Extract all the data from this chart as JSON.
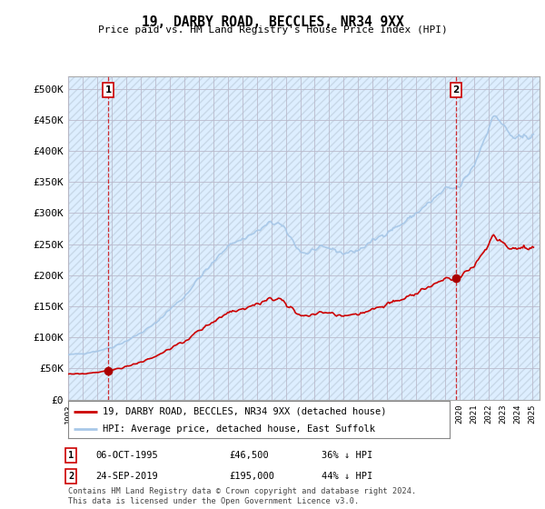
{
  "title": "19, DARBY ROAD, BECCLES, NR34 9XX",
  "subtitle": "Price paid vs. HM Land Registry's House Price Index (HPI)",
  "ylabel_ticks": [
    "£0",
    "£50K",
    "£100K",
    "£150K",
    "£200K",
    "£250K",
    "£300K",
    "£350K",
    "£400K",
    "£450K",
    "£500K"
  ],
  "ytick_values": [
    0,
    50000,
    100000,
    150000,
    200000,
    250000,
    300000,
    350000,
    400000,
    450000,
    500000
  ],
  "ylim": [
    0,
    520000
  ],
  "xlim_start": 1993.0,
  "xlim_end": 2025.5,
  "xtick_years": [
    1993,
    1994,
    1995,
    1996,
    1997,
    1998,
    1999,
    2000,
    2001,
    2002,
    2003,
    2004,
    2005,
    2006,
    2007,
    2008,
    2009,
    2010,
    2011,
    2012,
    2013,
    2014,
    2015,
    2016,
    2017,
    2018,
    2019,
    2020,
    2021,
    2022,
    2023,
    2024,
    2025
  ],
  "hpi_color": "#a8c8e8",
  "price_color": "#cc0000",
  "marker_color": "#aa0000",
  "dashed_line_color": "#cc0000",
  "background_color": "#ffffff",
  "plot_bg_color": "#ddeeff",
  "grid_color": "#bbbbcc",
  "transaction1_x": 1995.76,
  "transaction1_y": 46500,
  "transaction1_label": "1",
  "transaction1_date": "06-OCT-1995",
  "transaction1_price": "£46,500",
  "transaction1_hpi": "36% ↓ HPI",
  "transaction2_x": 2019.73,
  "transaction2_y": 195000,
  "transaction2_label": "2",
  "transaction2_date": "24-SEP-2019",
  "transaction2_price": "£195,000",
  "transaction2_hpi": "44% ↓ HPI",
  "legend_label1": "19, DARBY ROAD, BECCLES, NR34 9XX (detached house)",
  "legend_label2": "HPI: Average price, detached house, East Suffolk",
  "footnote": "Contains HM Land Registry data © Crown copyright and database right 2024.\nThis data is licensed under the Open Government Licence v3.0."
}
